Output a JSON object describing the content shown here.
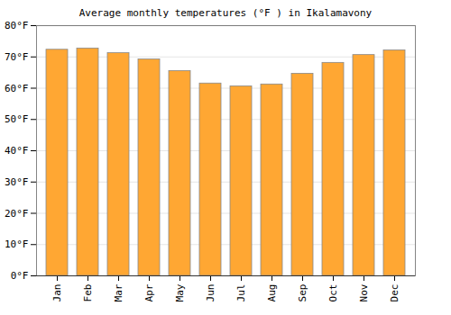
{
  "chart_data": {
    "type": "bar",
    "title": "Average monthly temperatures (°F ) in Ikalamavony",
    "categories": [
      "Jan",
      "Feb",
      "Mar",
      "Apr",
      "May",
      "Jun",
      "Jul",
      "Aug",
      "Sep",
      "Oct",
      "Nov",
      "Dec"
    ],
    "values": [
      72.3,
      72.7,
      71.2,
      69.2,
      65.5,
      61.5,
      60.6,
      61.2,
      64.6,
      68.1,
      70.6,
      72.1
    ],
    "color": "#ffa733",
    "ylim": [
      0,
      80
    ],
    "yticks": [
      {
        "value": 0,
        "label": "0°F"
      },
      {
        "value": 10,
        "label": "10°F"
      },
      {
        "value": 20,
        "label": "20°F"
      },
      {
        "value": 30,
        "label": "30°F"
      },
      {
        "value": 40,
        "label": "40°F"
      },
      {
        "value": 50,
        "label": "50°F"
      },
      {
        "value": 60,
        "label": "60°F"
      },
      {
        "value": 70,
        "label": "70°F"
      },
      {
        "value": 80,
        "label": "80°F"
      }
    ],
    "grid": true
  }
}
